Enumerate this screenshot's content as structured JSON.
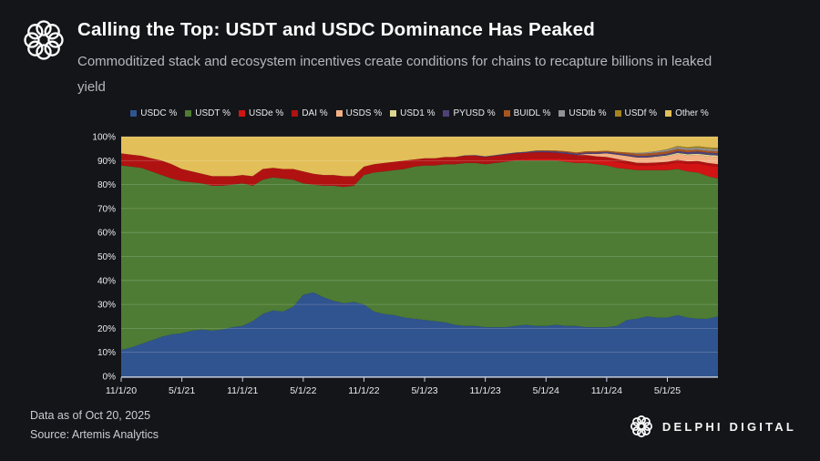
{
  "header": {
    "title": "Calling the Top: USDT and USDC Dominance Has Peaked",
    "subtitle": "Commoditized stack and ecosystem incentives create conditions for chains to recapture billions in leaked yield"
  },
  "footer": {
    "data_as_of": "Data as of Oct 20, 2025",
    "source": "Source: Artemis Analytics",
    "brand": "DELPHI DIGITAL"
  },
  "colors": {
    "background": "#141519",
    "title_text": "#ffffff",
    "subtitle_text": "#b4b7bc",
    "axis_line": "#c8d3e8",
    "gridline": "rgba(255,255,255,0.22)",
    "tick_text": "#e9ebee"
  },
  "chart_data": {
    "type": "area",
    "stacked": true,
    "normalized_to_100": true,
    "title": "Stablecoin supply dominance (%)",
    "xlabel": "",
    "ylabel": "",
    "ylim": [
      0,
      100
    ],
    "grid": true,
    "legend_position": "top",
    "x_unit": "months since 11/1/20, monthly samples through 10/20/25",
    "x_domain": [
      0,
      59
    ],
    "x_ticks": [
      {
        "m": 0,
        "label": "11/1/20"
      },
      {
        "m": 6,
        "label": "5/1/21"
      },
      {
        "m": 12,
        "label": "11/1/21"
      },
      {
        "m": 18,
        "label": "5/1/22"
      },
      {
        "m": 24,
        "label": "11/1/22"
      },
      {
        "m": 30,
        "label": "5/1/23"
      },
      {
        "m": 36,
        "label": "11/1/23"
      },
      {
        "m": 42,
        "label": "5/1/24"
      },
      {
        "m": 48,
        "label": "11/1/24"
      },
      {
        "m": 54,
        "label": "5/1/25"
      }
    ],
    "y_ticks": [
      "0%",
      "10%",
      "20%",
      "30%",
      "40%",
      "50%",
      "60%",
      "70%",
      "80%",
      "90%",
      "100%"
    ],
    "series": [
      {
        "name": "USDC",
        "label": "USDC %",
        "color": "#30548F",
        "values": [
          11,
          12,
          13.5,
          15,
          16.5,
          17.5,
          18,
          19,
          19.5,
          19,
          19.5,
          20.5,
          21,
          23,
          26,
          27.5,
          27,
          29,
          34,
          35,
          33,
          31.5,
          30.5,
          31,
          30,
          27,
          26,
          25.5,
          24.5,
          24,
          23.5,
          23,
          22.5,
          21.5,
          21,
          21,
          20.5,
          20.5,
          20.5,
          21,
          21.5,
          21,
          21,
          21.5,
          21,
          21,
          20.5,
          20.5,
          20.5,
          21,
          23.5,
          24,
          25,
          24.5,
          24.5,
          25.5,
          24.5,
          24,
          24,
          25
        ]
      },
      {
        "name": "USDT",
        "label": "USDT %",
        "color": "#4E7C34",
        "values": [
          77,
          75.5,
          73.5,
          70.5,
          67.5,
          65,
          63.5,
          62,
          61,
          60.5,
          60,
          59.5,
          59.5,
          56.5,
          56,
          55.5,
          55.5,
          53,
          46.5,
          45,
          46.5,
          48,
          48.5,
          48.5,
          54,
          58,
          59.5,
          60.5,
          62,
          63.5,
          64.5,
          65,
          66,
          67,
          68,
          68,
          68,
          68.5,
          69,
          69,
          68.5,
          69,
          69,
          68.5,
          68.5,
          68,
          68.5,
          68,
          67.5,
          66,
          63,
          62,
          61,
          61.5,
          61.5,
          61,
          61,
          61,
          59.5,
          57.5
        ]
      },
      {
        "name": "USDe",
        "label": "USDe %",
        "color": "#D21414",
        "values": [
          0,
          0,
          0,
          0,
          0,
          0,
          0,
          0,
          0,
          0,
          0,
          0,
          0,
          0,
          0,
          0,
          0,
          0,
          0,
          0,
          0,
          0,
          0,
          0,
          0,
          0,
          0,
          0,
          0,
          0,
          0,
          0,
          0,
          0,
          0,
          0,
          0,
          0,
          0.3,
          0.5,
          0.8,
          1,
          1,
          1,
          1.2,
          1.3,
          1.5,
          1.8,
          2.2,
          2.5,
          2.2,
          2,
          2,
          2.2,
          2.5,
          2.8,
          3.2,
          3.8,
          4.5,
          5
        ]
      },
      {
        "name": "DAI",
        "label": "DAI %",
        "color": "#B01212",
        "values": [
          5,
          5,
          5,
          5.5,
          6,
          6,
          5,
          4.5,
          4,
          4,
          4,
          3.5,
          3.5,
          4,
          4.5,
          4,
          4,
          4.5,
          5,
          4.5,
          4.5,
          4.5,
          4.5,
          4,
          3.5,
          3.5,
          3.5,
          3.5,
          3.5,
          3,
          3,
          3,
          3,
          3,
          3,
          3,
          3,
          3,
          2.7,
          2.5,
          2.5,
          2.5,
          2.5,
          2.3,
          2.2,
          2,
          1.8,
          1.5,
          1.3,
          1.2,
          1.2,
          1.1,
          1,
          1,
          1,
          1,
          1,
          1,
          1,
          1
        ]
      },
      {
        "name": "USDS",
        "label": "USDS %",
        "color": "#F2B083",
        "values": [
          0,
          0,
          0,
          0,
          0,
          0,
          0,
          0,
          0,
          0,
          0,
          0,
          0,
          0,
          0,
          0,
          0,
          0,
          0,
          0,
          0,
          0,
          0,
          0,
          0,
          0,
          0,
          0,
          0,
          0,
          0,
          0,
          0,
          0,
          0,
          0,
          0,
          0,
          0,
          0,
          0,
          0,
          0,
          0,
          0,
          0,
          0.5,
          1,
          1.5,
          1.8,
          2,
          2.2,
          2.3,
          2.3,
          2.3,
          2.4,
          2.5,
          2.6,
          2.8,
          3
        ]
      },
      {
        "name": "USD1",
        "label": "USD1 %",
        "color": "#DCD68E",
        "values": [
          0,
          0,
          0,
          0,
          0,
          0,
          0,
          0,
          0,
          0,
          0,
          0,
          0,
          0,
          0,
          0,
          0,
          0,
          0,
          0,
          0,
          0,
          0,
          0,
          0,
          0,
          0,
          0,
          0,
          0,
          0,
          0,
          0,
          0,
          0,
          0,
          0,
          0,
          0,
          0,
          0,
          0,
          0,
          0,
          0,
          0,
          0,
          0,
          0,
          0,
          0,
          0,
          0,
          0.2,
          0.4,
          0.5,
          0.5,
          0.5,
          0.6,
          0.6
        ]
      },
      {
        "name": "PYUSD",
        "label": "PYUSD %",
        "color": "#4F4178",
        "values": [
          0,
          0,
          0,
          0,
          0,
          0,
          0,
          0,
          0,
          0,
          0,
          0,
          0,
          0,
          0,
          0,
          0,
          0,
          0,
          0,
          0,
          0,
          0,
          0,
          0,
          0,
          0,
          0,
          0,
          0,
          0,
          0,
          0,
          0,
          0.2,
          0.3,
          0.3,
          0.3,
          0.4,
          0.4,
          0.4,
          0.5,
          0.5,
          0.5,
          0.6,
          0.6,
          0.6,
          0.6,
          0.6,
          0.6,
          0.7,
          0.7,
          0.7,
          0.7,
          0.7,
          0.8,
          0.8,
          0.9,
          0.9,
          1
        ]
      },
      {
        "name": "BUIDL",
        "label": "BUIDL %",
        "color": "#A85520",
        "values": [
          0,
          0,
          0,
          0,
          0,
          0,
          0,
          0,
          0,
          0,
          0,
          0,
          0,
          0,
          0,
          0,
          0,
          0,
          0,
          0,
          0,
          0,
          0,
          0,
          0,
          0,
          0,
          0,
          0,
          0,
          0,
          0,
          0,
          0,
          0,
          0,
          0,
          0,
          0,
          0,
          0,
          0.2,
          0.3,
          0.4,
          0.4,
          0.5,
          0.5,
          0.5,
          0.5,
          0.6,
          0.8,
          0.9,
          1,
          1,
          1,
          1,
          0.9,
          0.8,
          0.8,
          0.8
        ]
      },
      {
        "name": "USDtb",
        "label": "USDtb %",
        "color": "#8F9297",
        "values": [
          0,
          0,
          0,
          0,
          0,
          0,
          0,
          0,
          0,
          0,
          0,
          0,
          0,
          0,
          0,
          0,
          0,
          0,
          0,
          0,
          0,
          0,
          0,
          0,
          0,
          0,
          0,
          0,
          0,
          0,
          0,
          0,
          0,
          0,
          0,
          0,
          0,
          0,
          0,
          0,
          0,
          0,
          0,
          0,
          0,
          0,
          0,
          0,
          0,
          0,
          0,
          0.3,
          0.5,
          0.6,
          0.7,
          0.7,
          0.7,
          0.8,
          0.8,
          0.8
        ]
      },
      {
        "name": "USDf",
        "label": "USDf %",
        "color": "#A5831D",
        "values": [
          0,
          0,
          0,
          0,
          0,
          0,
          0,
          0,
          0,
          0,
          0,
          0,
          0,
          0,
          0,
          0,
          0,
          0,
          0,
          0,
          0,
          0,
          0,
          0,
          0,
          0,
          0,
          0,
          0,
          0,
          0,
          0,
          0,
          0,
          0,
          0,
          0,
          0,
          0,
          0,
          0,
          0,
          0,
          0,
          0,
          0,
          0,
          0,
          0,
          0,
          0,
          0,
          0,
          0,
          0.2,
          0.4,
          0.5,
          0.6,
          0.6,
          0.6
        ]
      },
      {
        "name": "Other",
        "label": "Other %",
        "color": "#E2BF58",
        "values": [
          7,
          7.5,
          8,
          9,
          10,
          11.5,
          13.5,
          14.5,
          15.5,
          16.5,
          16.5,
          16.5,
          16,
          16.5,
          13.5,
          13,
          13.5,
          13.5,
          14.5,
          15.5,
          16,
          16,
          16.5,
          16.5,
          12.5,
          11.5,
          11,
          10.5,
          10,
          9.5,
          9,
          9,
          8.5,
          8.5,
          7.8,
          7.7,
          8.2,
          7.7,
          7.1,
          6.6,
          6.3,
          5.8,
          5.7,
          5.8,
          6.1,
          6.6,
          6.1,
          6.1,
          5.9,
          6.3,
          6.6,
          6.8,
          6.5,
          6,
          5.2,
          3.9,
          4.4,
          4,
          4.5,
          4.7
        ]
      }
    ]
  }
}
